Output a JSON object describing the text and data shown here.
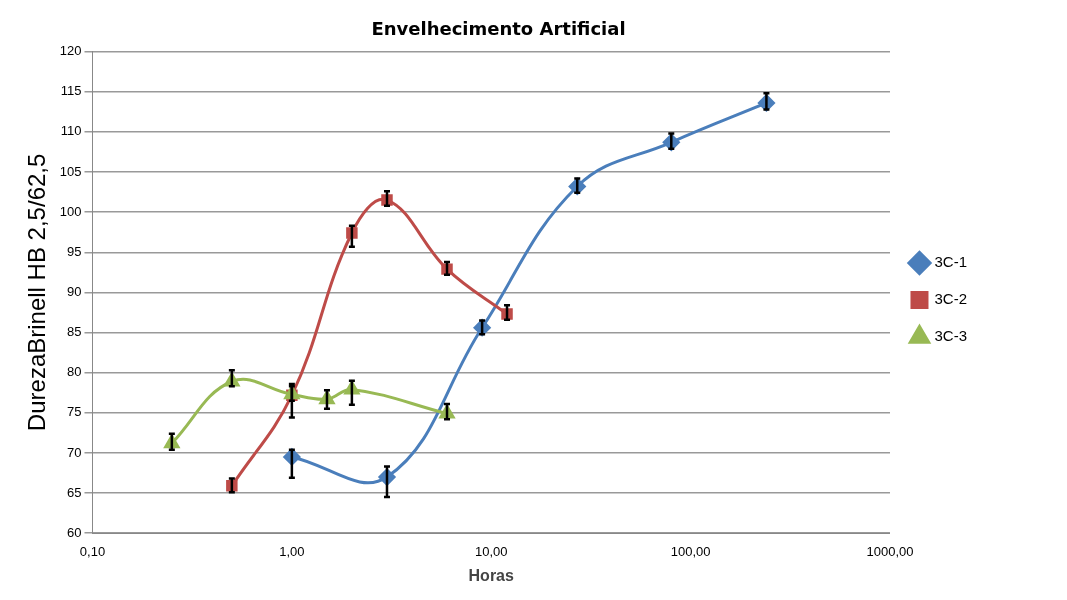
{
  "chart_data": {
    "type": "line",
    "title": "Envelhecimento Artificial",
    "xlabel": "Horas",
    "ylabel": "DurezaBrinell HB 2,5/62,5",
    "log": "x",
    "grid": "y",
    "legend": "right",
    "xlim": [
      0.1,
      1000
    ],
    "xticks": [
      {
        "value": 0.1,
        "label": "0,10"
      },
      {
        "value": 1,
        "label": "1,00"
      },
      {
        "value": 10,
        "label": "10,00"
      },
      {
        "value": 100,
        "label": "100,00"
      },
      {
        "value": 1000,
        "label": "1000,00"
      }
    ],
    "ylim": [
      60,
      120
    ],
    "yticks": [
      60,
      65,
      70,
      75,
      80,
      85,
      90,
      95,
      100,
      105,
      110,
      115,
      120
    ],
    "series": [
      {
        "name": "3C-1",
        "color": "#4a7ebb",
        "marker": "diamond",
        "x": [
          1,
          3,
          9,
          27,
          80,
          240
        ],
        "values": [
          69.5,
          67,
          85.6,
          103.2,
          108.7,
          113.6
        ],
        "errors": [
          [
            66.9,
            70.4
          ],
          [
            64.5,
            68.3
          ],
          [
            84.8,
            86.5
          ],
          [
            102.4,
            104.2
          ],
          [
            107.9,
            109.8
          ],
          [
            112.8,
            114.8
          ]
        ]
      },
      {
        "name": "3C-2",
        "color": "#be4b48",
        "marker": "square",
        "x": [
          0.5,
          1,
          2,
          3,
          6,
          12
        ],
        "values": [
          65.9,
          77.2,
          97.4,
          101.5,
          92.9,
          87.3
        ],
        "errors": [
          [
            65.1,
            66.8
          ],
          [
            74.4,
            78.6
          ],
          [
            95.7,
            98.3
          ],
          [
            100.8,
            102.6
          ],
          [
            92.2,
            93.8
          ],
          [
            86.6,
            88.4
          ]
        ]
      },
      {
        "name": "3C-3",
        "color": "#98b954",
        "marker": "triangle",
        "x": [
          0.25,
          0.5,
          1,
          1.5,
          2,
          6
        ],
        "values": [
          71.2,
          78.9,
          77.3,
          76.7,
          77.9,
          74.9
        ],
        "errors": [
          [
            70.4,
            72.4
          ],
          [
            78.3,
            80.3
          ],
          [
            76.5,
            78.3
          ],
          [
            75.5,
            77.8
          ],
          [
            76,
            79
          ],
          [
            74.2,
            76.1
          ]
        ]
      }
    ]
  }
}
